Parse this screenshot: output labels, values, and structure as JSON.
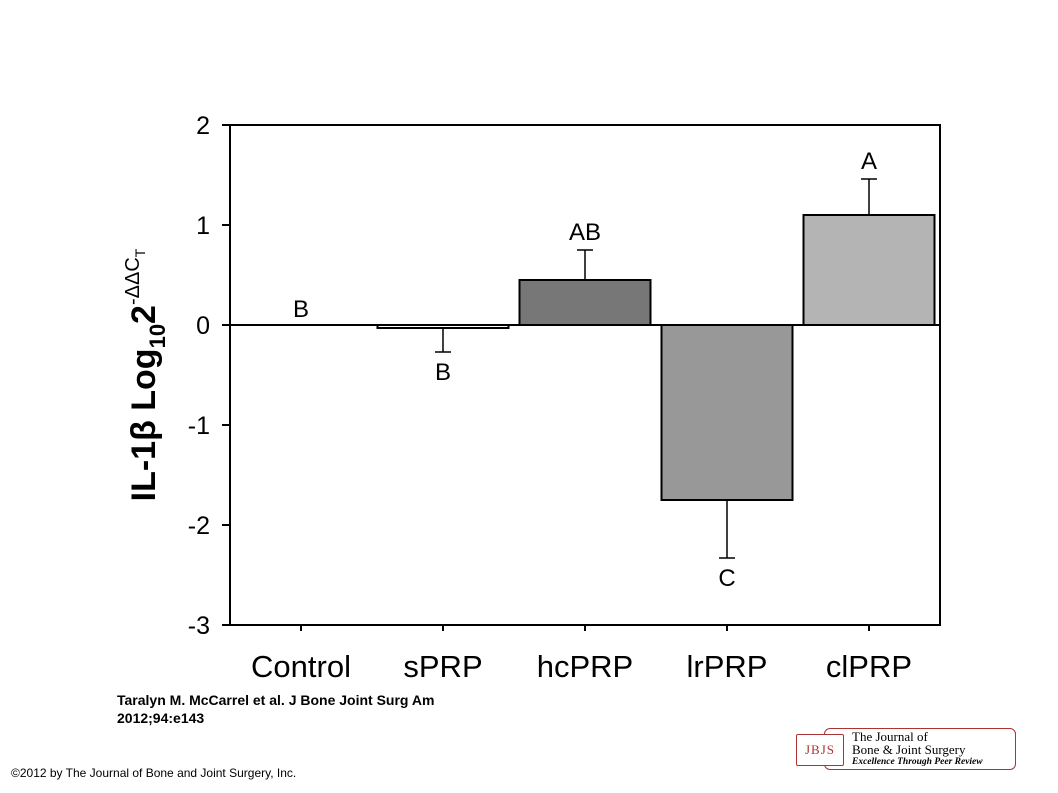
{
  "chart_data": {
    "type": "bar",
    "categories": [
      "Control",
      "sPRP",
      "hcPRP",
      "lrPRP",
      "clPRP"
    ],
    "values": [
      0,
      -0.03,
      0.45,
      -1.75,
      1.1
    ],
    "error": [
      0,
      0.24,
      0.3,
      0.58,
      0.36
    ],
    "bar_colors": [
      "#ffffff",
      "#ffffff",
      "#777777",
      "#989898",
      "#b4b4b4"
    ],
    "significance_labels": [
      "B",
      "B",
      "AB",
      "C",
      "A"
    ],
    "ylim": [
      -3,
      2
    ],
    "yticks": [
      "2",
      "1",
      "0",
      "-1",
      "-2",
      "-3"
    ],
    "ytick_values": [
      2,
      1,
      0,
      -1,
      -2,
      -3
    ],
    "ylabel": {
      "main": "IL-1β Log",
      "sub": "10",
      "base": "2",
      "sup": "-ΔΔC",
      "sup_sub": "T"
    },
    "grid": false
  },
  "citation": {
    "line1": "Taralyn M. McCarrel et al. J Bone Joint Surg Am",
    "line2": "2012;94:e143"
  },
  "copyright": "©2012 by The Journal of Bone and Joint Surgery, Inc.",
  "logo": {
    "mark": "JBJS",
    "line1": "The Journal of",
    "line2": "Bone & Joint Surgery",
    "tagline": "Excellence Through Peer Review"
  }
}
